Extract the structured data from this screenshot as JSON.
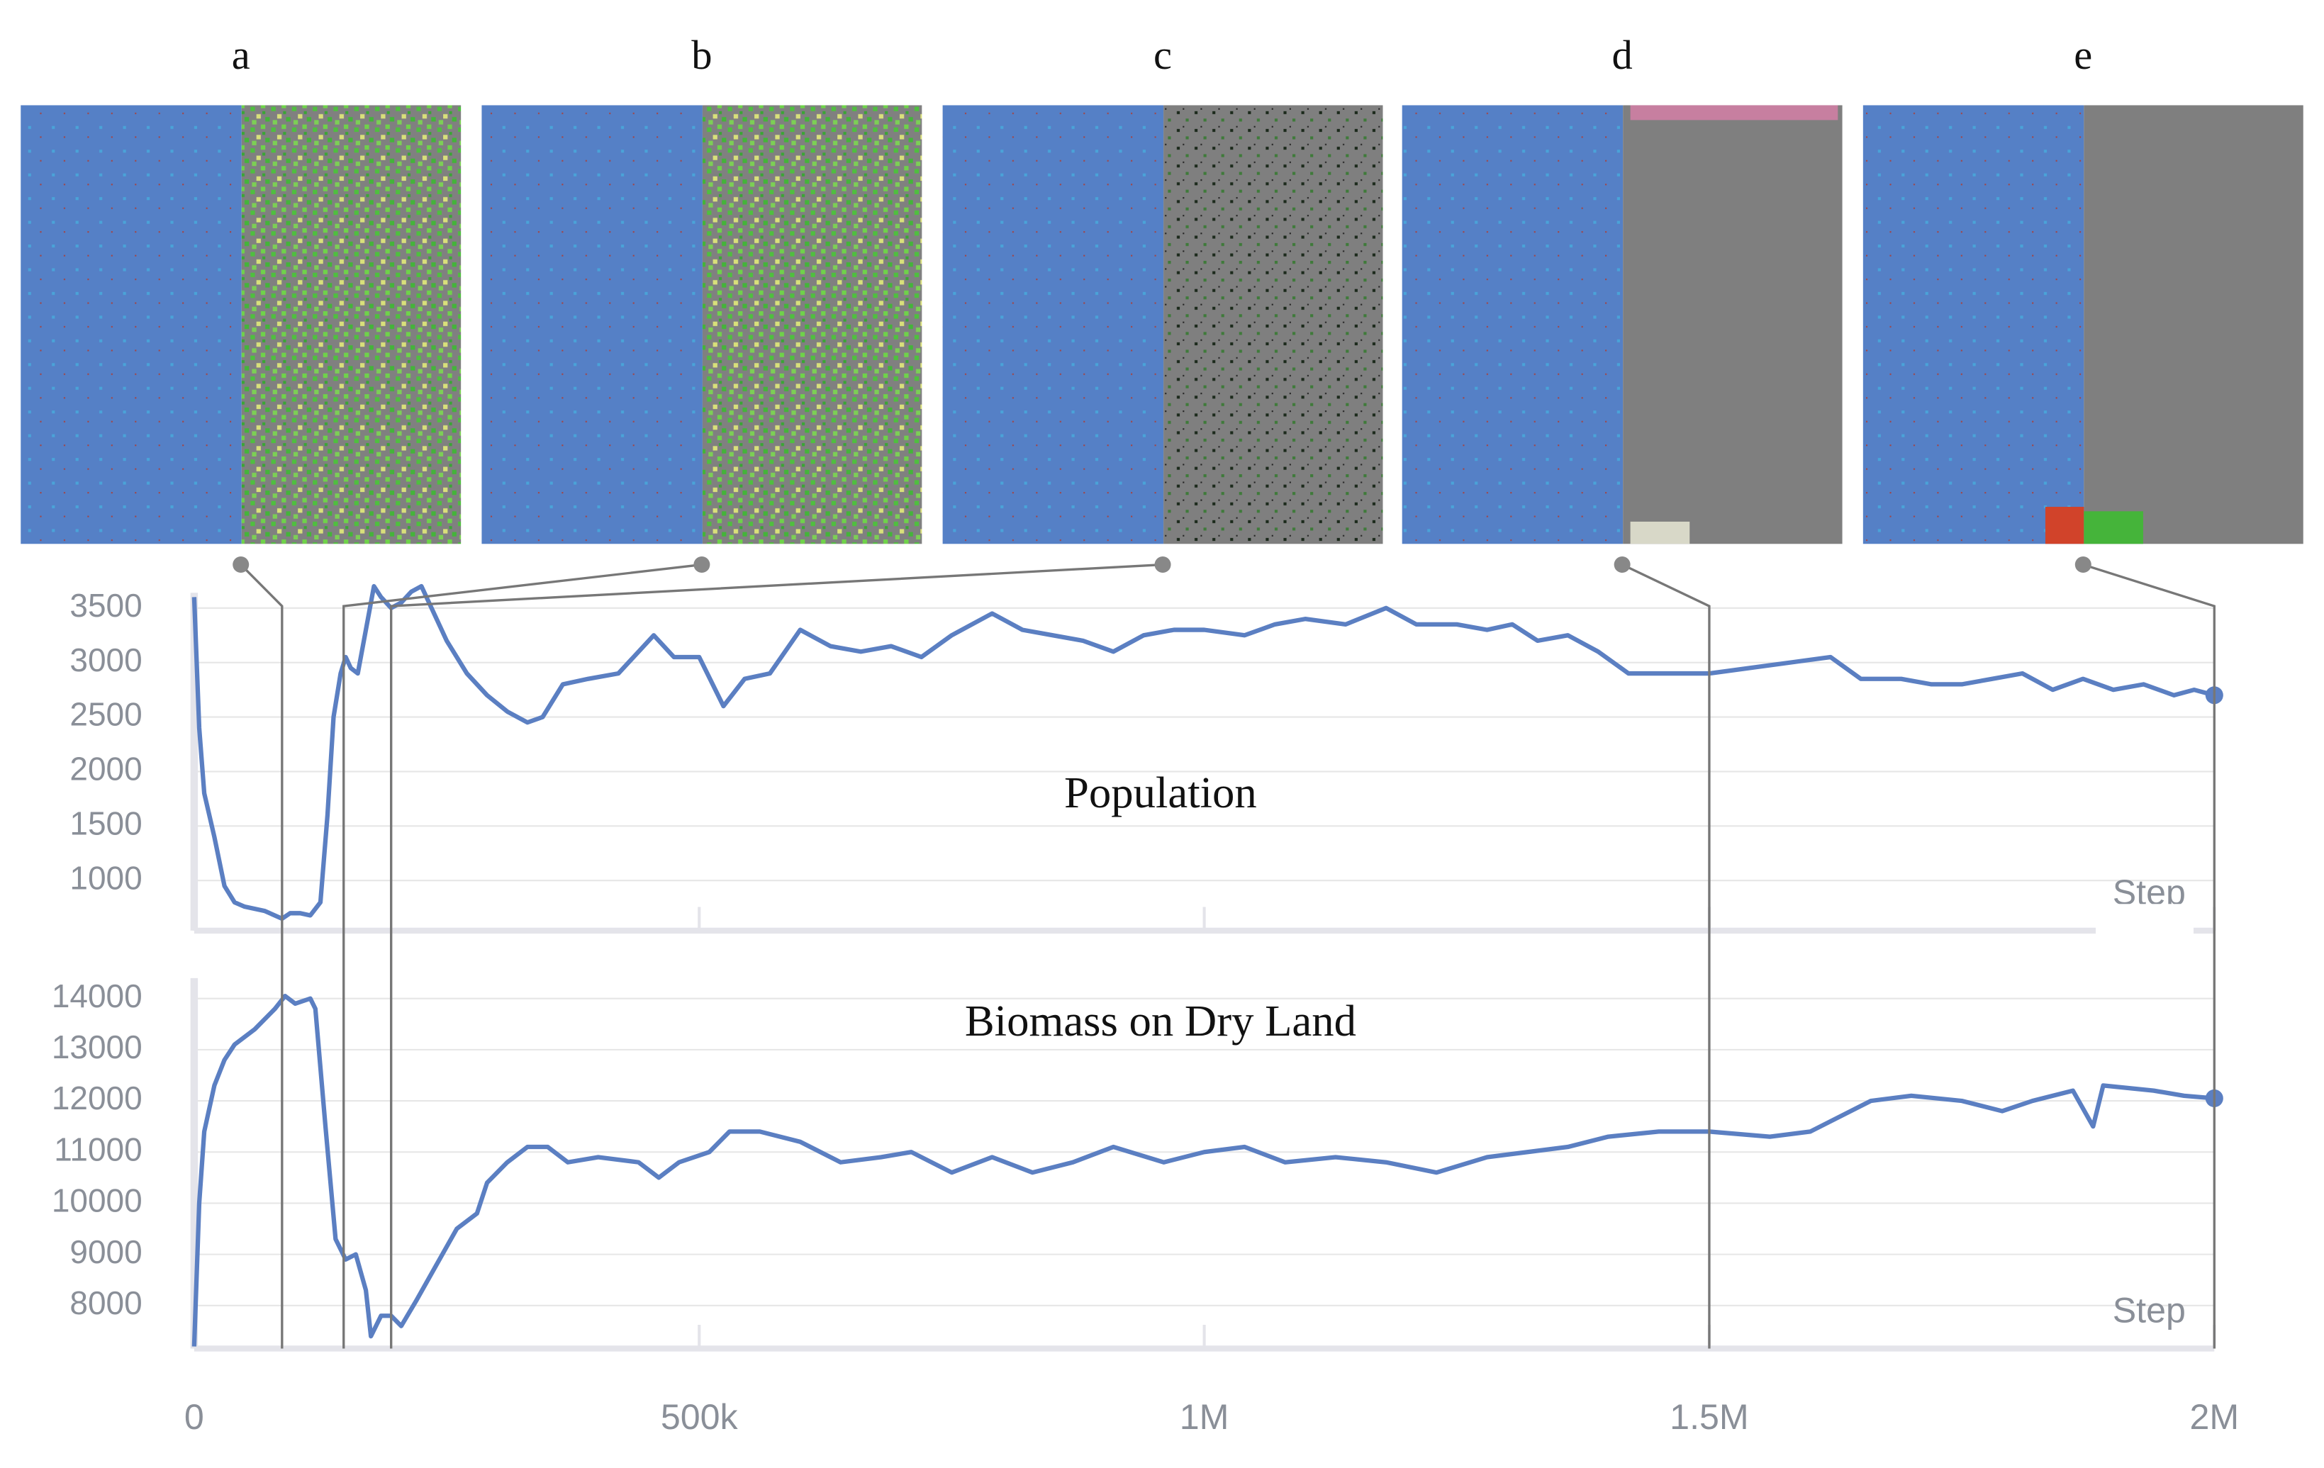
{
  "chart_data": [
    {
      "type": "line",
      "title": "Population",
      "x_label": "Step",
      "color": "#5b7fc2",
      "xlim": [
        0,
        2000000
      ],
      "ylim": [
        540,
        3640
      ],
      "yticks": [
        1000,
        1500,
        2000,
        2500,
        3000,
        3500
      ],
      "grid": true,
      "x": [
        0,
        5000,
        10000,
        20000,
        30000,
        40000,
        50000,
        70000,
        87000,
        95000,
        105000,
        115000,
        125000,
        132000,
        138000,
        145000,
        150000,
        155000,
        162000,
        170000,
        178000,
        185000,
        195000,
        205000,
        215000,
        225000,
        235000,
        250000,
        270000,
        290000,
        310000,
        330000,
        345000,
        365000,
        390000,
        420000,
        455000,
        475000,
        500000,
        524000,
        545000,
        570000,
        600000,
        630000,
        660000,
        690000,
        720000,
        750000,
        790000,
        820000,
        850000,
        880000,
        910000,
        940000,
        970000,
        1000000,
        1040000,
        1070000,
        1100000,
        1140000,
        1180000,
        1210000,
        1250000,
        1280000,
        1305000,
        1330000,
        1360000,
        1390000,
        1420000,
        1460000,
        1500000,
        1540000,
        1580000,
        1620000,
        1650000,
        1690000,
        1720000,
        1750000,
        1780000,
        1810000,
        1840000,
        1870000,
        1900000,
        1930000,
        1960000,
        1980000,
        2000000
      ],
      "values": [
        3600,
        2400,
        1800,
        1400,
        950,
        800,
        760,
        720,
        650,
        700,
        700,
        680,
        800,
        1600,
        2500,
        2900,
        3050,
        2950,
        2900,
        3300,
        3700,
        3600,
        3500,
        3550,
        3650,
        3700,
        3500,
        3200,
        2900,
        2700,
        2550,
        2450,
        2500,
        2800,
        2850,
        2900,
        3250,
        3050,
        3050,
        2600,
        2850,
        2900,
        3300,
        3150,
        3100,
        3150,
        3050,
        3250,
        3450,
        3300,
        3250,
        3200,
        3100,
        3250,
        3300,
        3300,
        3250,
        3350,
        3400,
        3350,
        3500,
        3350,
        3350,
        3300,
        3350,
        3200,
        3250,
        3100,
        2900,
        2900,
        2900,
        2950,
        3000,
        3050,
        2850,
        2850,
        2800,
        2800,
        2850,
        2900,
        2750,
        2850,
        2750,
        2800,
        2700,
        2750,
        2700
      ]
    },
    {
      "type": "line",
      "title": "Biomass on Dry Land",
      "x_label": "Step",
      "color": "#5b7fc2",
      "xlim": [
        0,
        2000000
      ],
      "ylim": [
        7160,
        14400
      ],
      "yticks": [
        8000,
        9000,
        10000,
        11000,
        12000,
        13000,
        14000
      ],
      "grid": true,
      "xticks": [
        0,
        {
          "value": 500000,
          "label": "500k"
        },
        {
          "value": 1000000,
          "label": "1M"
        },
        {
          "value": 1500000,
          "label": "1.5M"
        },
        {
          "value": 2000000,
          "label": "2M"
        }
      ],
      "x": [
        0,
        5000,
        10000,
        20000,
        30000,
        40000,
        60000,
        80000,
        90000,
        100000,
        115000,
        120000,
        130000,
        140000,
        150000,
        160000,
        170000,
        175000,
        185000,
        195000,
        205000,
        220000,
        240000,
        260000,
        280000,
        290000,
        310000,
        330000,
        350000,
        370000,
        400000,
        440000,
        460000,
        480000,
        510000,
        530000,
        560000,
        600000,
        640000,
        680000,
        710000,
        750000,
        790000,
        830000,
        870000,
        910000,
        960000,
        1000000,
        1040000,
        1080000,
        1130000,
        1180000,
        1230000,
        1280000,
        1320000,
        1360000,
        1400000,
        1450000,
        1500000,
        1560000,
        1600000,
        1660000,
        1700000,
        1750000,
        1790000,
        1820000,
        1860000,
        1880000,
        1890000,
        1940000,
        1970000,
        2000000
      ],
      "values": [
        7200,
        10000,
        11400,
        12300,
        12800,
        13100,
        13400,
        13800,
        14050,
        13900,
        14000,
        13800,
        11500,
        9300,
        8900,
        9000,
        8300,
        7400,
        7800,
        7800,
        7600,
        8100,
        8800,
        9500,
        9800,
        10400,
        10800,
        11100,
        11100,
        10800,
        10900,
        10800,
        10500,
        10800,
        11000,
        11400,
        11400,
        11200,
        10800,
        10900,
        11000,
        10600,
        10900,
        10600,
        10800,
        11100,
        10800,
        11000,
        11100,
        10800,
        10900,
        10800,
        10600,
        10900,
        11000,
        11100,
        11300,
        11400,
        11400,
        11300,
        11400,
        12000,
        12100,
        12000,
        11800,
        12000,
        12200,
        11500,
        12300,
        12200,
        12100,
        12050
      ]
    }
  ],
  "snapshots": [
    {
      "label": "a",
      "step": 87000
    },
    {
      "label": "b",
      "step": 148000
    },
    {
      "label": "c",
      "step": 195000
    },
    {
      "label": "d",
      "step": 1500000
    },
    {
      "label": "e",
      "step": 2000000
    }
  ]
}
